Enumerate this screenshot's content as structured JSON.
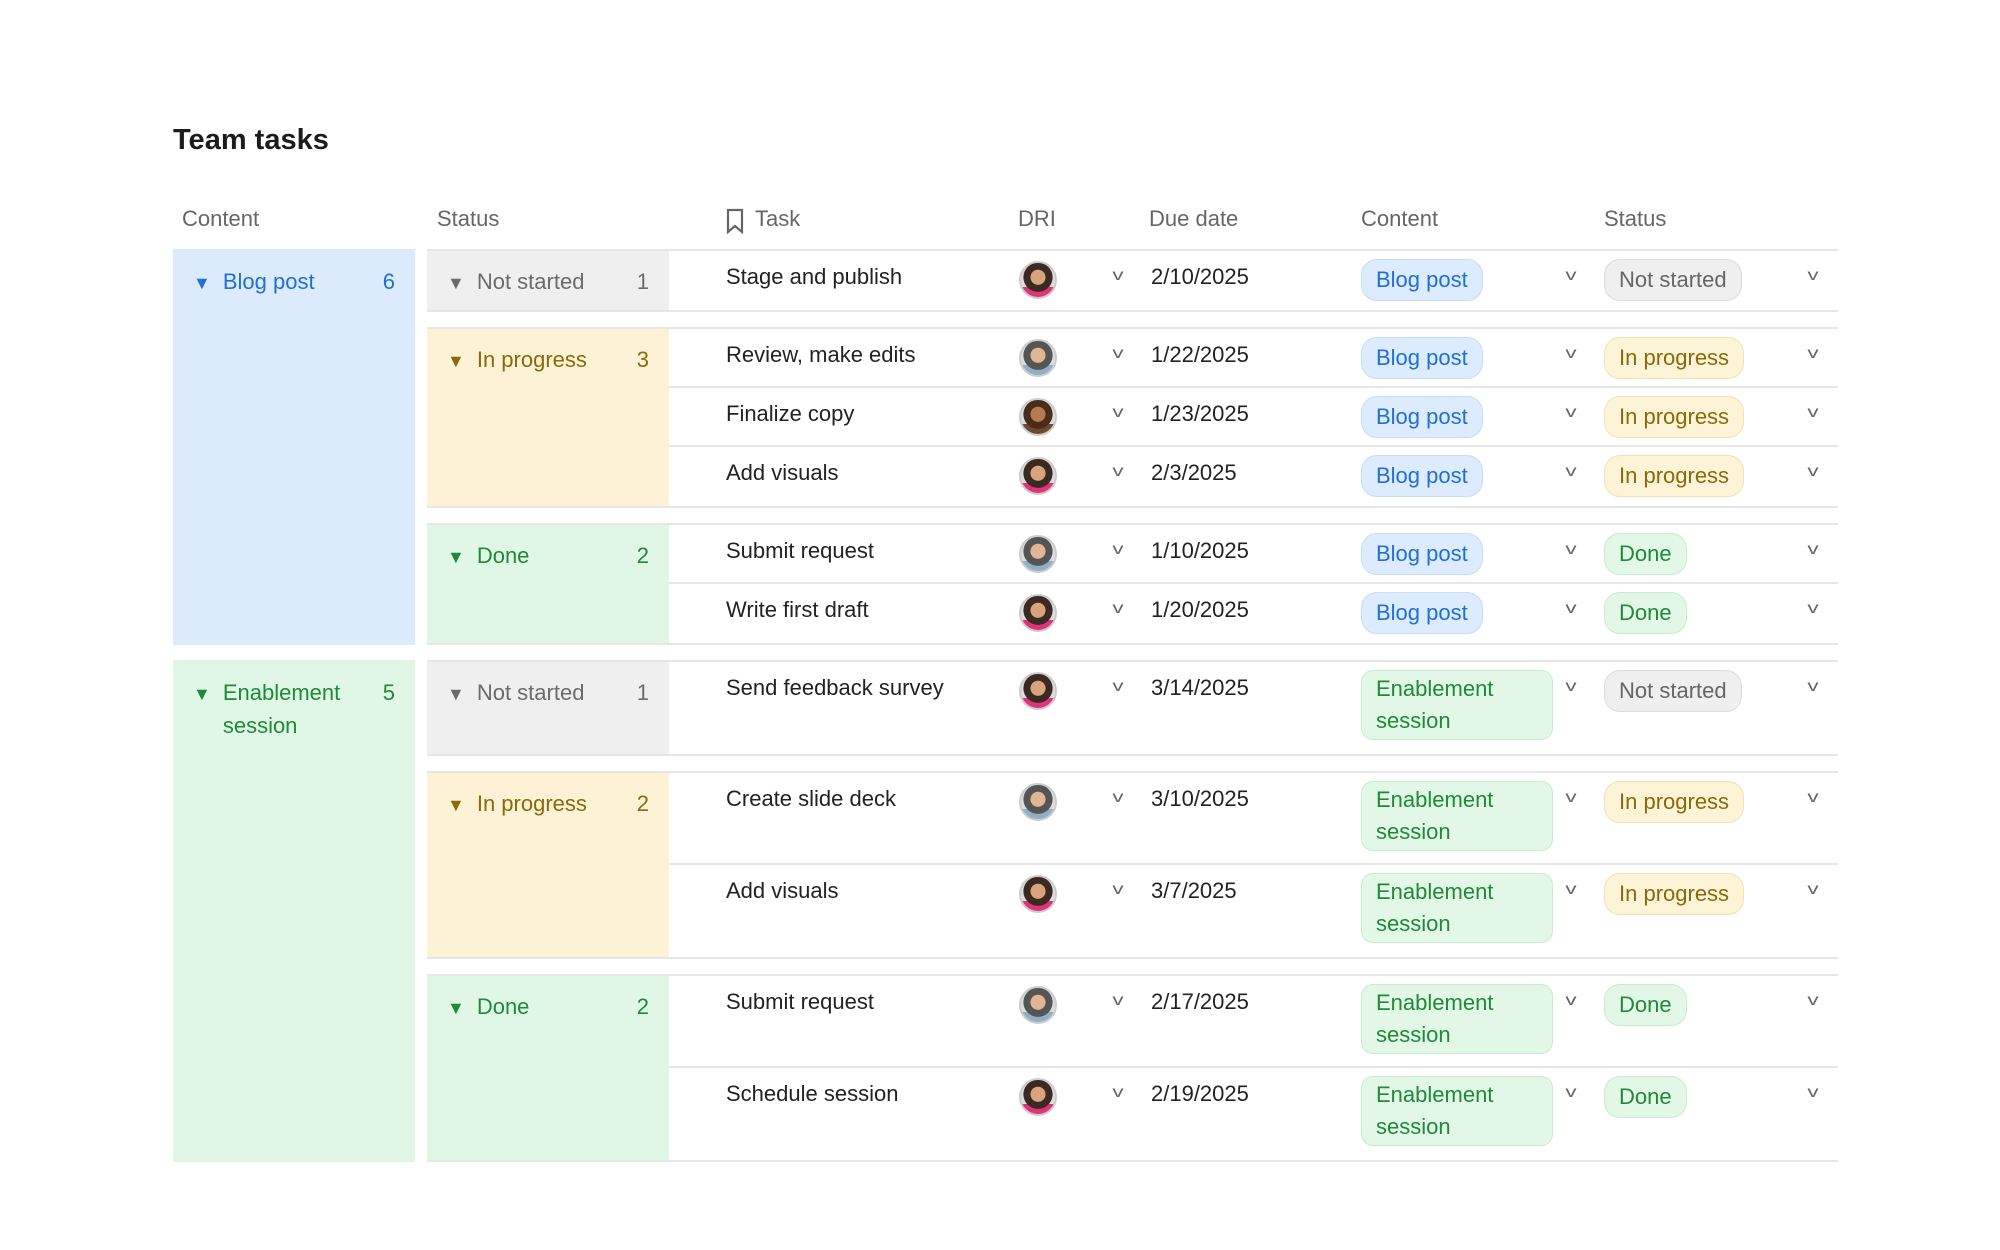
{
  "title": "Team tasks",
  "columns": [
    "Content",
    "Status",
    "Task",
    "DRI",
    "Due date",
    "Content",
    "Status"
  ],
  "colors": {
    "blue": "#1f6fd6",
    "yellow": "#8a6a0a",
    "green": "#1e8a3a",
    "gray": "#6b6b6b"
  },
  "groups": [
    {
      "label": "Blog post",
      "count": "6",
      "color": "blue",
      "statuses": [
        {
          "label": "Not started",
          "count": "1",
          "color": "gray",
          "rows": [
            {
              "task": "Stage and publish",
              "dri": "avatar-a",
              "due": "2/10/2025",
              "content": "Blog post",
              "status": "Not started"
            }
          ]
        },
        {
          "label": "In progress",
          "count": "3",
          "color": "yellow",
          "rows": [
            {
              "task": "Review, make edits",
              "dri": "avatar-b",
              "due": "1/22/2025",
              "content": "Blog post",
              "status": "In progress"
            },
            {
              "task": "Finalize copy",
              "dri": "avatar-c",
              "due": "1/23/2025",
              "content": "Blog post",
              "status": "In progress"
            },
            {
              "task": "Add visuals",
              "dri": "avatar-a",
              "due": "2/3/2025",
              "content": "Blog post",
              "status": "In progress"
            }
          ]
        },
        {
          "label": "Done",
          "count": "2",
          "color": "green",
          "rows": [
            {
              "task": "Submit request",
              "dri": "avatar-b",
              "due": "1/10/2025",
              "content": "Blog post",
              "status": "Done"
            },
            {
              "task": "Write first draft",
              "dri": "avatar-a",
              "due": "1/20/2025",
              "content": "Blog post",
              "status": "Done"
            }
          ]
        }
      ]
    },
    {
      "label": "Enablement session",
      "count": "5",
      "color": "green",
      "statuses": [
        {
          "label": "Not started",
          "count": "1",
          "color": "gray",
          "rows": [
            {
              "task": "Send feedback survey",
              "dri": "avatar-a",
              "due": "3/14/2025",
              "content": "Enablement session",
              "status": "Not started"
            }
          ]
        },
        {
          "label": "In progress",
          "count": "2",
          "color": "yellow",
          "rows": [
            {
              "task": "Create slide deck",
              "dri": "avatar-b",
              "due": "3/10/2025",
              "content": "Enablement session",
              "status": "In progress"
            },
            {
              "task": "Add visuals",
              "dri": "avatar-a",
              "due": "3/7/2025",
              "content": "Enablement session",
              "status": "In progress"
            }
          ]
        },
        {
          "label": "Done",
          "count": "2",
          "color": "green",
          "rows": [
            {
              "task": "Submit request",
              "dri": "avatar-b",
              "due": "2/17/2025",
              "content": "Enablement session",
              "status": "Done"
            },
            {
              "task": "Schedule session",
              "dri": "avatar-a",
              "due": "2/19/2025",
              "content": "Enablement session",
              "status": "Done"
            }
          ]
        }
      ]
    }
  ]
}
